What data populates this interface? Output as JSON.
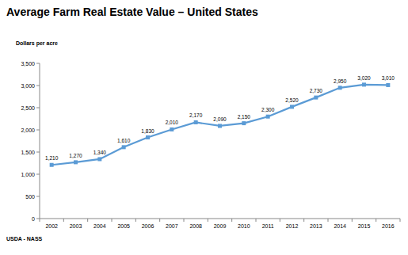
{
  "chart_data": {
    "type": "line",
    "title": "Average Farm Real Estate Value – United States",
    "ylabel": "Dollars per acre",
    "source": "USDA - NASS",
    "categories": [
      "2002",
      "2003",
      "2004",
      "2005",
      "2006",
      "2007",
      "2008",
      "2009",
      "2010",
      "2011",
      "2012",
      "2013",
      "2014",
      "2015",
      "2016"
    ],
    "values": [
      1210,
      1270,
      1340,
      1610,
      1830,
      2010,
      2170,
      2090,
      2150,
      2300,
      2520,
      2730,
      2950,
      3020,
      3010
    ],
    "value_labels": [
      "1,210",
      "1,270",
      "1,340",
      "1,610",
      "1,830",
      "2,010",
      "2,170",
      "2,090",
      "2,150",
      "2,300",
      "2,520",
      "2,730",
      "2,950",
      "3,020",
      "3,010"
    ],
    "color": "#5b9bd5",
    "marker": "square",
    "data_labels": true,
    "grid": false,
    "ylim": [
      0,
      3500
    ],
    "yticks": [
      0,
      {
        "value": 500,
        "label": "500"
      },
      {
        "value": 1000,
        "label": "1,000"
      },
      {
        "value": 1500,
        "label": "1,500"
      },
      {
        "value": 2000,
        "label": "2,000"
      },
      {
        "value": 2500,
        "label": "2,500"
      },
      {
        "value": 3000,
        "label": "3,000"
      },
      {
        "value": 3500,
        "label": "3,500"
      }
    ]
  }
}
